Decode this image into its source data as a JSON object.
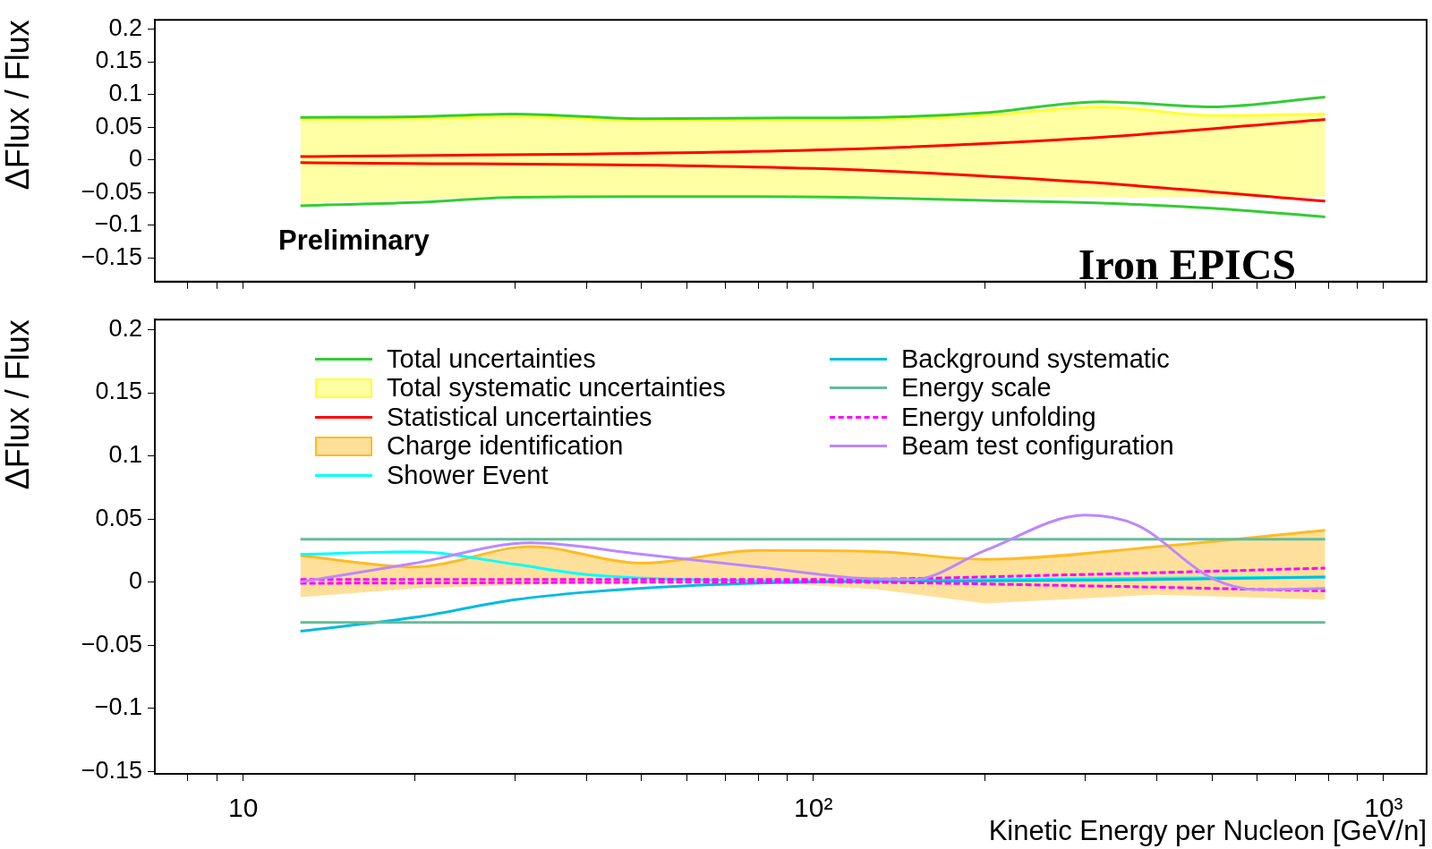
{
  "chart_data": [
    {
      "type": "line",
      "ylabel": "ΔFlux / Flux",
      "xlim": [
        7,
        1190
      ],
      "ylim": [
        -0.186,
        0.214
      ],
      "xticks": [
        {
          "value": 8,
          "label": null
        },
        {
          "value": 9,
          "label": null
        },
        {
          "value": 10,
          "label": null
        },
        {
          "value": 20,
          "label": null
        },
        {
          "value": 30,
          "label": null
        },
        {
          "value": 40,
          "label": null
        },
        {
          "value": 50,
          "label": null
        },
        {
          "value": 60,
          "label": null
        },
        {
          "value": 70,
          "label": null
        },
        {
          "value": 80,
          "label": null
        },
        {
          "value": 90,
          "label": null
        },
        {
          "value": 100,
          "label": null
        },
        {
          "value": 200,
          "label": null
        },
        {
          "value": 300,
          "label": null
        },
        {
          "value": 400,
          "label": null
        },
        {
          "value": 500,
          "label": null
        },
        {
          "value": 600,
          "label": null
        },
        {
          "value": 700,
          "label": null
        },
        {
          "value": 800,
          "label": null
        },
        {
          "value": 900,
          "label": null
        },
        {
          "value": 1000,
          "label": null
        }
      ],
      "yticks": [
        {
          "value": -0.15,
          "label": "−0.15"
        },
        {
          "value": -0.1,
          "label": "−0.1"
        },
        {
          "value": -0.05,
          "label": "−0.05"
        },
        0,
        0.05,
        0.1,
        0.15,
        0.2
      ],
      "log": "x",
      "grid": false,
      "tick_labels": "y",
      "legend": "bottom",
      "annotations": [
        "Preliminary",
        "Iron EPICS"
      ],
      "series": [
        {
          "name": "Total uncertainties",
          "type": "line",
          "color": "#33cc33",
          "x": [
            12.6,
            20,
            30,
            50,
            80,
            130,
            200,
            320,
            500,
            790
          ],
          "values": [
            0.065,
            0.066,
            0.07,
            0.063,
            0.064,
            0.065,
            0.072,
            0.089,
            0.081,
            0.096
          ]
        },
        {
          "type": "line",
          "color": "#33cc33",
          "x": [
            12.6,
            20,
            30,
            50,
            80,
            130,
            200,
            320,
            500,
            790
          ],
          "values": [
            -0.07,
            -0.065,
            -0.057,
            -0.056,
            -0.056,
            -0.058,
            -0.062,
            -0.066,
            -0.074,
            -0.087
          ]
        },
        {
          "name": "Total systematic uncertainties",
          "type": "line",
          "color": "#ffff33",
          "x": [
            12.6,
            20,
            30,
            50,
            80,
            130,
            200,
            320,
            500,
            790
          ],
          "values": [
            0.062,
            0.063,
            0.066,
            0.06,
            0.061,
            0.062,
            0.068,
            0.081,
            0.068,
            0.07
          ],
          "upper": [
            0.062,
            0.063,
            0.066,
            0.06,
            0.061,
            0.062,
            0.068,
            0.081,
            0.068,
            0.07
          ],
          "lower": [
            -0.066,
            -0.061,
            -0.054,
            -0.054,
            -0.054,
            -0.055,
            -0.057,
            -0.057,
            -0.057,
            -0.056
          ]
        },
        {
          "name": "Statistical uncertainties",
          "type": "line",
          "color": "#ff0000",
          "x": [
            12.6,
            100,
            300,
            790
          ],
          "values": [
            0.005,
            0.015,
            0.033,
            0.062
          ]
        },
        {
          "type": "line",
          "color": "#ff0000",
          "x": [
            12.6,
            100,
            300,
            790
          ],
          "values": [
            -0.004,
            -0.013,
            -0.034,
            -0.063
          ]
        }
      ]
    },
    {
      "type": "line",
      "xlabel": "Kinetic Energy per Nucleon [GeV/n]",
      "ylabel": "ΔFlux / Flux",
      "xlim": [
        7,
        1190
      ],
      "ylim": [
        -0.152,
        0.208
      ],
      "xticks": [
        {
          "value": 8,
          "label": null
        },
        {
          "value": 9,
          "label": null
        },
        {
          "value": 10,
          "label": "10"
        },
        {
          "value": 20,
          "label": null
        },
        {
          "value": 30,
          "label": null
        },
        {
          "value": 40,
          "label": null
        },
        {
          "value": 50,
          "label": null
        },
        {
          "value": 60,
          "label": null
        },
        {
          "value": 70,
          "label": null
        },
        {
          "value": 80,
          "label": null
        },
        {
          "value": 90,
          "label": null
        },
        {
          "value": 100,
          "label": "10²"
        },
        {
          "value": 200,
          "label": null
        },
        {
          "value": 300,
          "label": null
        },
        {
          "value": 400,
          "label": null
        },
        {
          "value": 500,
          "label": null
        },
        {
          "value": 600,
          "label": null
        },
        {
          "value": 700,
          "label": null
        },
        {
          "value": 800,
          "label": null
        },
        {
          "value": 900,
          "label": null
        },
        {
          "value": 1000,
          "label": "10³"
        }
      ],
      "yticks": [
        {
          "value": -0.15,
          "label": "−0.15"
        },
        {
          "value": -0.1,
          "label": "−0.1"
        },
        {
          "value": -0.05,
          "label": "−0.05"
        },
        0,
        0.05,
        0.1,
        0.15,
        0.2
      ],
      "log": "x",
      "grid": false,
      "legend": "top",
      "series": [
        {
          "name": "Charge identification",
          "type": "line",
          "color": "#ffbb22",
          "x": [
            12.6,
            20,
            32,
            50,
            80,
            130,
            200,
            400,
            790
          ],
          "values": [
            0.021,
            0.012,
            0.028,
            0.015,
            0.025,
            0.024,
            0.018,
            0.028,
            0.041
          ],
          "upper": [
            0.021,
            0.012,
            0.028,
            0.015,
            0.025,
            0.024,
            0.018,
            0.028,
            0.041
          ],
          "lower": [
            -0.012,
            -0.005,
            -0.002,
            -0.001,
            0,
            -0.006,
            -0.017,
            -0.01,
            -0.014
          ]
        },
        {
          "name": "Shower Event",
          "type": "line",
          "color": "#00ffff",
          "x": [
            12.6,
            20,
            30,
            40,
            60,
            100,
            200,
            400,
            790
          ],
          "values": [
            0.022,
            0.024,
            0.014,
            0.006,
            0.002,
            0.001,
            0.002,
            0.003,
            0.004
          ]
        },
        {
          "name": "Background systematic",
          "type": "line",
          "color": "#00bbdd",
          "x": [
            12.6,
            20,
            30,
            40,
            60,
            100,
            200,
            400,
            790
          ],
          "values": [
            -0.039,
            -0.028,
            -0.014,
            -0.008,
            -0.003,
            0,
            0.001,
            0.002,
            0.004
          ]
        },
        {
          "name": "Energy scale",
          "type": "line",
          "color": "#66bb99",
          "x": [
            12.6,
            790
          ],
          "values": [
            0.034,
            0.034
          ]
        },
        {
          "type": "line",
          "color": "#66bb99",
          "x": [
            12.6,
            790
          ],
          "values": [
            -0.032,
            -0.032
          ]
        },
        {
          "name": "Energy unfolding",
          "type": "line",
          "line_style": "dashed",
          "color": "#ff00ff",
          "x": [
            12.6,
            100,
            300,
            790
          ],
          "values": [
            0.002,
            0.002,
            0.006,
            0.011
          ]
        },
        {
          "type": "line",
          "line_style": "dashed",
          "color": "#ff00ff",
          "x": [
            12.6,
            100,
            300,
            790
          ],
          "values": [
            -0.001,
            0,
            -0.003,
            -0.007
          ]
        },
        {
          "name": "Beam test configuration",
          "type": "line",
          "color": "#bb88ff",
          "x": [
            12.6,
            20,
            32,
            50,
            80,
            120,
            150,
            200,
            300,
            370,
            500,
            600,
            790
          ],
          "values": [
            0,
            0.015,
            0.031,
            0.022,
            0.012,
            0.003,
            0.002,
            0.025,
            0.053,
            0.045,
            0.003,
            -0.006,
            -0.005
          ]
        }
      ]
    }
  ]
}
